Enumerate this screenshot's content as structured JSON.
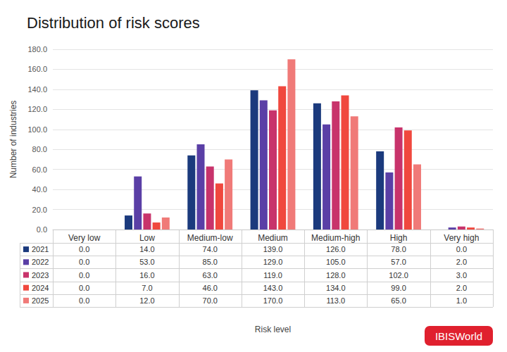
{
  "chart_data": {
    "type": "bar",
    "title": "Distribution of risk scores",
    "x_label": "Risk level",
    "y_label": "Number of industries",
    "categories": [
      "Very low",
      "Low",
      "Medium-low",
      "Medium",
      "Medium-high",
      "High",
      "Very high"
    ],
    "series": [
      {
        "name": "2021",
        "color": "#1b3a7d",
        "values": [
          0,
          14,
          74,
          139,
          126,
          78,
          0
        ],
        "value_labels": [
          "0.0",
          "14.0",
          "74.0",
          "139.0",
          "126.0",
          "78.0",
          "0.0"
        ]
      },
      {
        "name": "2022",
        "color": "#5a3fa6",
        "values": [
          0,
          53,
          85,
          129,
          105,
          57,
          2
        ],
        "value_labels": [
          "0.0",
          "53.0",
          "85.0",
          "129.0",
          "105.0",
          "57.0",
          "2.0"
        ]
      },
      {
        "name": "2023",
        "color": "#c8336b",
        "values": [
          0,
          16,
          63,
          119,
          128,
          102,
          3
        ],
        "value_labels": [
          "0.0",
          "16.0",
          "63.0",
          "119.0",
          "128.0",
          "102.0",
          "3.0"
        ]
      },
      {
        "name": "2024",
        "color": "#f0483e",
        "values": [
          0,
          7,
          46,
          143,
          134,
          99,
          2
        ],
        "value_labels": [
          "0.0",
          "7.0",
          "46.0",
          "143.0",
          "134.0",
          "99.0",
          "2.0"
        ]
      },
      {
        "name": "2025",
        "color": "#f07a78",
        "values": [
          0,
          12,
          70,
          170,
          113,
          65,
          1
        ],
        "value_labels": [
          "0.0",
          "12.0",
          "70.0",
          "170.0",
          "113.0",
          "65.0",
          "1.0"
        ]
      }
    ],
    "ylim": [
      0,
      180
    ],
    "yticks": [
      {
        "value": 0,
        "label": "0.0"
      },
      {
        "value": 20,
        "label": "20.0"
      },
      {
        "value": 40,
        "label": "40.0"
      },
      {
        "value": 60,
        "label": "60.0"
      },
      {
        "value": 80,
        "label": "80.0"
      },
      {
        "value": 100,
        "label": "100.0"
      },
      {
        "value": 120,
        "label": "120.0"
      },
      {
        "value": 140,
        "label": "140.0"
      },
      {
        "value": 160,
        "label": "160.0"
      },
      {
        "value": 180,
        "label": "180.0"
      }
    ],
    "grid": true,
    "annotations": [
      "IBISWorld"
    ]
  }
}
